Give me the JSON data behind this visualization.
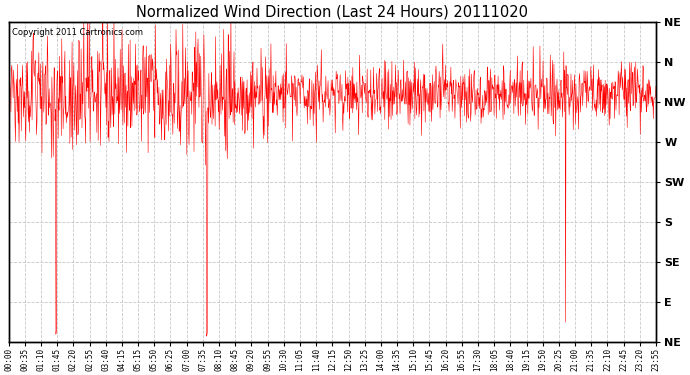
{
  "title": "Normalized Wind Direction (Last 24 Hours) 20111020",
  "copyright": "Copyright 2011 Cartronics.com",
  "line_color": "#ff0000",
  "background_color": "#ffffff",
  "plot_bg_color": "#ffffff",
  "grid_color": "#c8c8c8",
  "y_labels": [
    "NE",
    "N",
    "NW",
    "W",
    "SW",
    "S",
    "SE",
    "E",
    "NE"
  ],
  "y_values": [
    8,
    7,
    6,
    5,
    4,
    3,
    2,
    1,
    0
  ],
  "ylim": [
    0,
    8
  ],
  "x_tick_labels": [
    "00:00",
    "00:35",
    "01:10",
    "01:45",
    "02:20",
    "02:55",
    "03:40",
    "04:15",
    "05:15",
    "05:50",
    "06:25",
    "07:00",
    "07:35",
    "08:10",
    "08:45",
    "09:20",
    "09:55",
    "10:30",
    "11:05",
    "11:40",
    "12:15",
    "12:50",
    "13:25",
    "14:00",
    "14:35",
    "15:10",
    "15:45",
    "16:20",
    "16:55",
    "17:30",
    "18:05",
    "18:40",
    "19:15",
    "19:50",
    "20:25",
    "21:00",
    "21:35",
    "22:10",
    "22:45",
    "23:20",
    "23:55"
  ],
  "seed": 42,
  "n_points": 1440,
  "base_level": 6.2,
  "noise_std": 0.55
}
